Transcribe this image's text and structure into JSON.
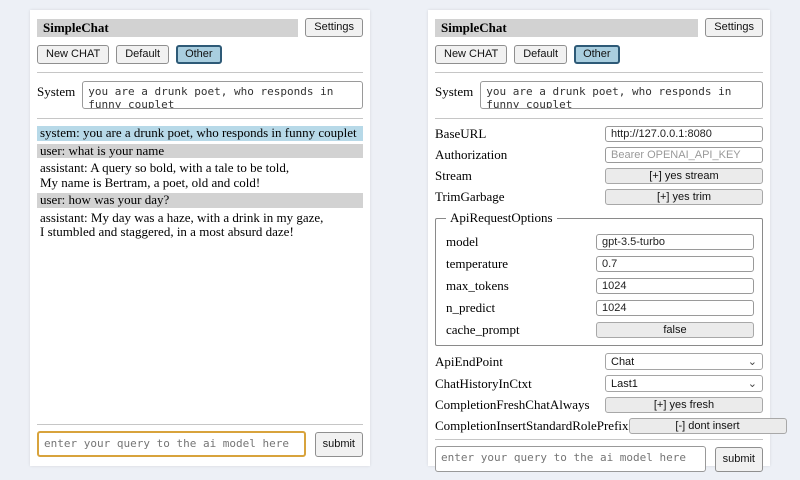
{
  "colors": {
    "page_bg": "#edf0f6",
    "panel_bg": "#ffffff",
    "titlebar_bg": "#d2d2d2",
    "selected_tab_bg": "#a9cedf",
    "selected_tab_border": "#2e5a77",
    "system_message_bg": "#b7d9e8",
    "user_message_bg": "#d2d2d2",
    "query_active_border": "#d8a33c"
  },
  "header": {
    "title": "SimpleChat",
    "settings_button": "Settings"
  },
  "toolbar": {
    "buttons": [
      {
        "label": "New CHAT",
        "selected": false
      },
      {
        "label": "Default",
        "selected": false
      },
      {
        "label": "Other",
        "selected": true
      }
    ]
  },
  "system_prompt": {
    "label": "System",
    "value": "you are a drunk poet, who responds in funny couplet"
  },
  "chat": {
    "messages": [
      {
        "role": "system",
        "text": "system: you are a drunk poet, who responds in funny couplet"
      },
      {
        "role": "user",
        "text": "user: what is your name"
      },
      {
        "role": "assistant",
        "text": "assistant: A query so bold, with a tale to be told,\nMy name is Bertram, a poet, old and cold!"
      },
      {
        "role": "user",
        "text": "user: how was your day?"
      },
      {
        "role": "assistant",
        "text": "assistant: My day was a haze, with a drink in my gaze,\nI stumbled and staggered, in a most absurd daze!"
      }
    ]
  },
  "settings": {
    "sections": [
      {
        "type": "rows",
        "rows": [
          {
            "label": "BaseURL",
            "control": "input",
            "value": "http://127.0.0.1:8080"
          },
          {
            "label": "Authorization",
            "control": "input",
            "value": "",
            "placeholder": "Bearer OPENAI_API_KEY"
          },
          {
            "label": "Stream",
            "control": "button",
            "value": "[+] yes stream"
          },
          {
            "label": "TrimGarbage",
            "control": "button",
            "value": "[+] yes trim"
          }
        ]
      },
      {
        "type": "fieldset",
        "legend": "ApiRequestOptions",
        "rows": [
          {
            "label": "model",
            "control": "input",
            "value": "gpt-3.5-turbo"
          },
          {
            "label": "temperature",
            "control": "input",
            "value": "0.7"
          },
          {
            "label": "max_tokens",
            "control": "input",
            "value": "1024"
          },
          {
            "label": "n_predict",
            "control": "input",
            "value": "1024"
          },
          {
            "label": "cache_prompt",
            "control": "button",
            "value": "false"
          }
        ]
      },
      {
        "type": "rows",
        "rows": [
          {
            "label": "ApiEndPoint",
            "control": "select",
            "value": "Chat"
          },
          {
            "label": "ChatHistoryInCtxt",
            "control": "select",
            "value": "Last1"
          },
          {
            "label": "CompletionFreshChatAlways",
            "control": "button",
            "value": "[+] yes fresh"
          },
          {
            "label": "CompletionInsertStandardRolePrefix",
            "control": "button",
            "value": "[-] dont insert"
          }
        ]
      }
    ]
  },
  "query": {
    "placeholder": "enter your query to the ai model here",
    "submit_label": "submit"
  }
}
